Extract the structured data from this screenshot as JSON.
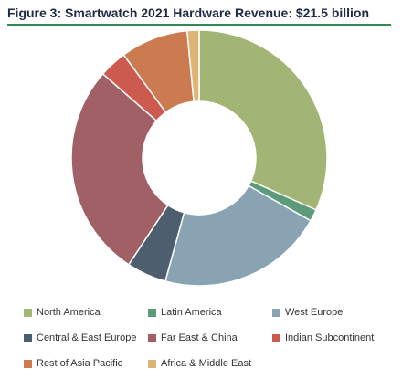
{
  "chart_data": {
    "type": "pie",
    "title": "Figure 3: Smartwatch 2021 Hardware Revenue: $21.5 billion",
    "donut": true,
    "legend_position": "bottom",
    "slices": [
      {
        "label": "North America",
        "value": 31.5,
        "color": "#a3b575"
      },
      {
        "label": "Latin America",
        "value": 1.5,
        "color": "#5b9b7a"
      },
      {
        "label": "West Europe",
        "value": 21.0,
        "color": "#89a3b2"
      },
      {
        "label": "Central & East Europe",
        "value": 5.0,
        "color": "#4d5e6e"
      },
      {
        "label": "Far East & China",
        "value": 27.0,
        "color": "#a15f66"
      },
      {
        "label": "Indian Subcontinent",
        "value": 3.5,
        "color": "#cc5a4f"
      },
      {
        "label": "Rest of Asia Pacific",
        "value": 8.5,
        "color": "#cc7a50"
      },
      {
        "label": "Africa & Middle East",
        "value": 1.5,
        "color": "#dcb577"
      }
    ]
  }
}
